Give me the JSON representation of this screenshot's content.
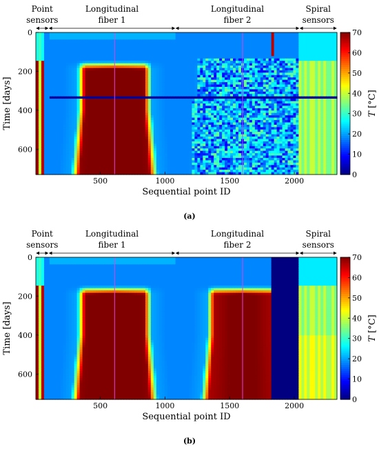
{
  "chart_data": [
    {
      "type": "heatmap",
      "panel_label": "(a)",
      "xlabel": "Sequential point ID",
      "ylabel": "Time [days]",
      "colorbar_label_var": "T",
      "colorbar_label_unit": "[°C]",
      "xlim": [
        1,
        2330
      ],
      "ylim": [
        0,
        730
      ],
      "y_reversed": true,
      "xticks": [
        500,
        1000,
        1500,
        2000
      ],
      "yticks": [
        0,
        200,
        400,
        600
      ],
      "clim": [
        0,
        70
      ],
      "cticks": [
        0,
        10,
        20,
        30,
        40,
        50,
        60,
        70
      ],
      "colormap": "jet",
      "sections": [
        {
          "name_lines": [
            "Point",
            "sensors"
          ],
          "x_range": [
            1,
            100
          ]
        },
        {
          "name_lines": [
            "Longitudinal",
            "fiber 1"
          ],
          "x_range": [
            100,
            1080
          ]
        },
        {
          "name_lines": [
            "Longitudinal",
            "fiber 2"
          ],
          "x_range": [
            1080,
            2040
          ]
        },
        {
          "name_lines": [
            "Spiral",
            "sensors"
          ],
          "x_range": [
            2040,
            2330
          ]
        }
      ],
      "magenta_lines_x": [
        610,
        1600
      ],
      "features": {
        "blackout_band_days": [
          330,
          345
        ],
        "noisy_region": "fiber 2 degrades from ~day 130 onward"
      }
    },
    {
      "type": "heatmap",
      "panel_label": "(b)",
      "xlabel": "Sequential point ID",
      "ylabel": "Time [days]",
      "colorbar_label_var": "T",
      "colorbar_label_unit": "[°C]",
      "xlim": [
        1,
        2330
      ],
      "ylim": [
        0,
        730
      ],
      "y_reversed": true,
      "xticks": [
        500,
        1000,
        1500,
        2000
      ],
      "yticks": [
        0,
        200,
        400,
        600
      ],
      "clim": [
        0,
        70
      ],
      "cticks": [
        0,
        10,
        20,
        30,
        40,
        50,
        60,
        70
      ],
      "colormap": "jet",
      "sections": [
        {
          "name_lines": [
            "Point",
            "sensors"
          ],
          "x_range": [
            1,
            100
          ]
        },
        {
          "name_lines": [
            "Longitudinal",
            "fiber 1"
          ],
          "x_range": [
            100,
            1080
          ]
        },
        {
          "name_lines": [
            "Longitudinal",
            "fiber 2"
          ],
          "x_range": [
            1080,
            2040
          ]
        },
        {
          "name_lines": [
            "Spiral",
            "sensors"
          ],
          "x_range": [
            2040,
            2330
          ]
        }
      ],
      "magenta_lines_x": [
        610,
        1600
      ],
      "features": {
        "dead_block_x": [
          1830,
          2040
        ],
        "dead_block_value": 0
      }
    }
  ]
}
